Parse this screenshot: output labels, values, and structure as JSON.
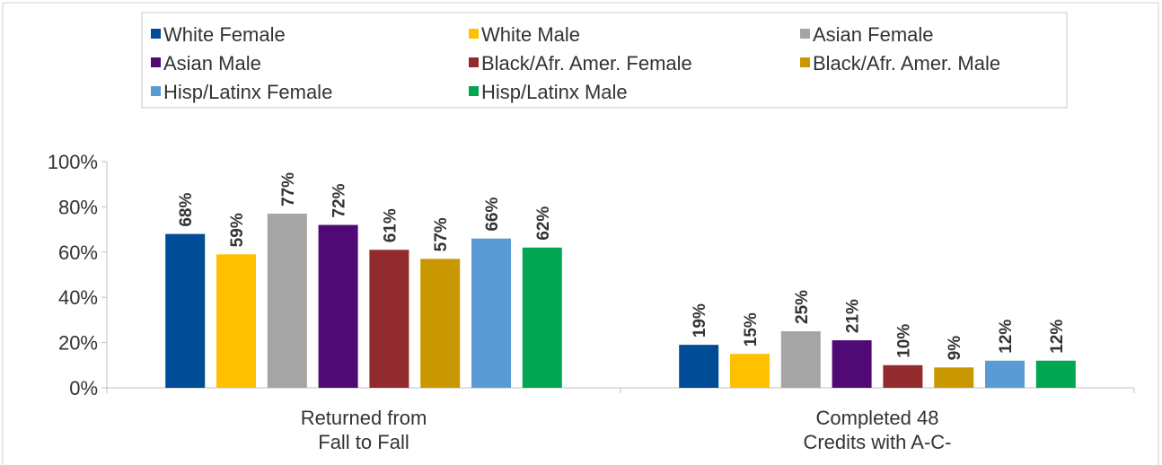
{
  "chart_data": {
    "type": "bar",
    "categories": [
      "Returned from\nFall to Fall",
      "Completed 48\nCredits with A-C-"
    ],
    "series": [
      {
        "name": "White Female",
        "color": "#004c97",
        "values": [
          68,
          19
        ],
        "value_labels": [
          "68%",
          "19%"
        ]
      },
      {
        "name": "White Male",
        "color": "#ffc000",
        "values": [
          59,
          15
        ],
        "value_labels": [
          "59%",
          "15%"
        ]
      },
      {
        "name": "Asian Female",
        "color": "#a5a5a5",
        "values": [
          77,
          25
        ],
        "value_labels": [
          "77%",
          "25%"
        ]
      },
      {
        "name": "Asian Male",
        "color": "#4f0a75",
        "values": [
          72,
          21
        ],
        "value_labels": [
          "72%",
          "21%"
        ]
      },
      {
        "name": "Black/Afr. Amer. Female",
        "color": "#922b2e",
        "values": [
          61,
          10
        ],
        "value_labels": [
          "61%",
          "10%"
        ]
      },
      {
        "name": "Black/Afr. Amer. Male",
        "color": "#c99700",
        "values": [
          57,
          9
        ],
        "value_labels": [
          "57%",
          "9%"
        ]
      },
      {
        "name": "Hisp/Latinx Female",
        "color": "#5b9bd5",
        "values": [
          66,
          12
        ],
        "value_labels": [
          "66%",
          "12%"
        ]
      },
      {
        "name": "Hisp/Latinx Male",
        "color": "#00a651",
        "values": [
          62,
          12
        ],
        "value_labels": [
          "62%",
          "12%"
        ]
      }
    ],
    "ylim": [
      0,
      100
    ],
    "yticks": [
      {
        "value": 0,
        "label": "0%"
      },
      {
        "value": 20,
        "label": "20%"
      },
      {
        "value": 40,
        "label": "40%"
      },
      {
        "value": 60,
        "label": "60%"
      },
      {
        "value": 80,
        "label": "80%"
      },
      {
        "value": 100,
        "label": "100%"
      }
    ],
    "legend": "top"
  }
}
